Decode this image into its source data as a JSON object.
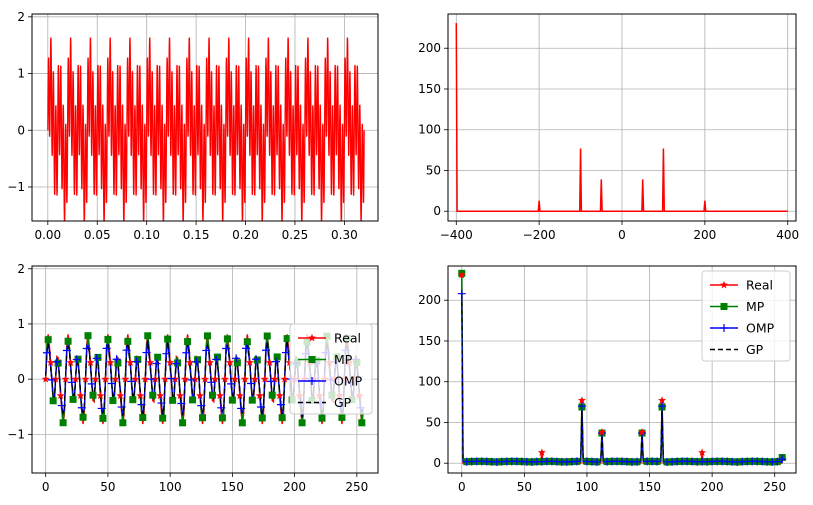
{
  "chart_data": [
    {
      "type": "line",
      "panel": "top-left",
      "description_none": "",
      "xlim": [
        -0.016,
        0.334
      ],
      "ylim": [
        -1.6,
        2.05
      ],
      "xticks": [
        0.0,
        0.05,
        0.1,
        0.15,
        0.2,
        0.25,
        0.3
      ],
      "xtick_labels": [
        "0.00",
        "0.05",
        "0.10",
        "0.15",
        "0.20",
        "0.25",
        "0.30"
      ],
      "yticks": [
        -1,
        0,
        1,
        2
      ],
      "ytick_labels": [
        "−1",
        "0",
        "1",
        "2"
      ],
      "grid": true,
      "signal": {
        "x_range": [
          0.0,
          0.32
        ],
        "components": [
          {
            "freq": 50,
            "amp": 0.3
          },
          {
            "freq": 100,
            "amp": 0.6
          },
          {
            "freq": 200,
            "amp": 0.1
          },
          {
            "freq": 400,
            "amp": 0.9
          }
        ]
      },
      "series": [
        {
          "color": "#ff0000"
        }
      ]
    },
    {
      "type": "line",
      "panel": "top-right",
      "xlim": [
        -420,
        420
      ],
      "ylim": [
        -12,
        242
      ],
      "xticks": [
        -400,
        -200,
        0,
        200,
        400
      ],
      "xtick_labels": [
        "−400",
        "−200",
        "0",
        "200",
        "400"
      ],
      "yticks": [
        0,
        50,
        100,
        150,
        200
      ],
      "ytick_labels": [
        "0",
        "50",
        "100",
        "150",
        "200"
      ],
      "grid": true,
      "x": [
        -400,
        -398,
        -202,
        -200,
        -198,
        -102,
        -100,
        -98,
        -52,
        -50,
        -48,
        48,
        50,
        52,
        98,
        100,
        102,
        198,
        200,
        202,
        400
      ],
      "y": [
        231,
        0,
        0,
        13,
        0,
        0,
        77,
        0,
        0,
        39,
        0,
        0,
        39,
        0,
        0,
        77,
        0,
        0,
        13,
        0,
        0
      ],
      "series": [
        {
          "color": "#ff0000"
        }
      ]
    },
    {
      "type": "line",
      "panel": "bottom-left",
      "xlim": [
        -11,
        267
      ],
      "ylim": [
        -1.7,
        2.05
      ],
      "xticks": [
        0,
        50,
        100,
        150,
        200,
        250
      ],
      "xtick_labels": [
        "0",
        "50",
        "100",
        "150",
        "200",
        "250"
      ],
      "yticks": [
        -1,
        0,
        1,
        2
      ],
      "ytick_labels": [
        "−1",
        "0",
        "1",
        "2"
      ],
      "grid": true,
      "n_samples": 256,
      "legend": {
        "position": "center-right",
        "entries": [
          {
            "label": "Real",
            "color": "#ff0000",
            "marker": "star"
          },
          {
            "label": "MP",
            "color": "#008000",
            "marker": "square"
          },
          {
            "label": "OMP",
            "color": "#0000ff",
            "marker": "plus"
          },
          {
            "label": "GP",
            "color": "#000000",
            "marker": "none",
            "dash": true
          }
        ]
      }
    },
    {
      "type": "line",
      "panel": "bottom-right",
      "xlim": [
        -11,
        267
      ],
      "ylim": [
        -12,
        242
      ],
      "xticks": [
        0,
        50,
        100,
        150,
        200,
        250
      ],
      "xtick_labels": [
        "0",
        "50",
        "100",
        "150",
        "200",
        "250"
      ],
      "yticks": [
        0,
        50,
        100,
        150,
        200
      ],
      "ytick_labels": [
        "0",
        "50",
        "100",
        "150",
        "200"
      ],
      "grid": true,
      "n_samples": 256,
      "peaks": [
        {
          "x": 0,
          "real": 231,
          "mp": 233,
          "omp": 208,
          "gp": 208
        },
        {
          "x": 64,
          "real": 13,
          "mp": 2,
          "omp": 2,
          "gp": 2
        },
        {
          "x": 96,
          "real": 77,
          "mp": 69,
          "omp": 70,
          "gp": 70
        },
        {
          "x": 112,
          "real": 38,
          "mp": 37,
          "omp": 37,
          "gp": 37
        },
        {
          "x": 144,
          "real": 38,
          "mp": 37,
          "omp": 37,
          "gp": 37
        },
        {
          "x": 160,
          "real": 77,
          "mp": 69,
          "omp": 70,
          "gp": 70
        },
        {
          "x": 192,
          "real": 13,
          "mp": 2,
          "omp": 2,
          "gp": 2
        },
        {
          "x": 256,
          "real": 0,
          "mp": 7,
          "omp": 5,
          "gp": 5
        }
      ],
      "legend": {
        "position": "upper right",
        "entries": [
          {
            "label": "Real",
            "color": "#ff0000",
            "marker": "star"
          },
          {
            "label": "MP",
            "color": "#008000",
            "marker": "square"
          },
          {
            "label": "OMP",
            "color": "#0000ff",
            "marker": "plus"
          },
          {
            "label": "GP",
            "color": "#000000",
            "marker": "none",
            "dash": true
          }
        ]
      }
    }
  ]
}
